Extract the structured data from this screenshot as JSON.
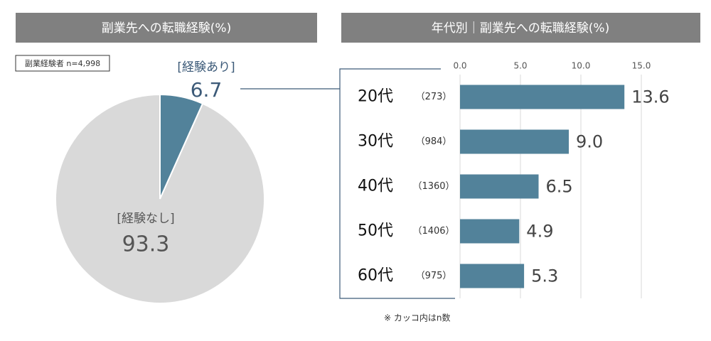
{
  "chart_data": [
    {
      "type": "pie",
      "title": "副業先への転職経験(%)",
      "note": "副業経験者 n=4,998",
      "categories": [
        "[経験あり]",
        "[経験なし]"
      ],
      "values": [
        6.7,
        93.3
      ],
      "colors": [
        "#52829a",
        "#d9d9d9"
      ]
    },
    {
      "type": "hbar",
      "title": "年代別｜副業先への転職経験(%)",
      "categories": [
        "20代",
        "30代",
        "40代",
        "50代",
        "60代"
      ],
      "subgroup_labels": [
        "（273）",
        "（984）",
        "（1360）",
        "（1406）",
        "（975）"
      ],
      "values": [
        13.6,
        9.0,
        6.5,
        4.9,
        5.3
      ],
      "value_labels": [
        "13.6",
        "9.0",
        "6.5",
        "4.9",
        "5.3"
      ],
      "color": "#52829a",
      "xlim": [
        0,
        15
      ],
      "xticks": [
        {
          "value": 0,
          "label": "0.0"
        },
        {
          "value": 5,
          "label": "5.0"
        },
        {
          "value": 10,
          "label": "10.0"
        },
        {
          "value": 15,
          "label": "15.0"
        }
      ],
      "grid": true,
      "footnote": "※ カッコ内はn数"
    }
  ]
}
